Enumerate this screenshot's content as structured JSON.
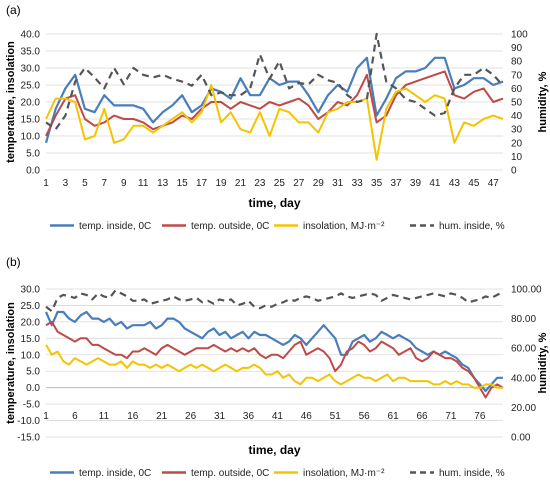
{
  "chart_data": [
    {
      "panel_label": "(a)",
      "type": "line",
      "xlabel": "time, day",
      "ylabel_left": "temperature, insolation",
      "ylabel_right": "humidity, %",
      "ylim_left": [
        0,
        40
      ],
      "ylim_right": [
        0,
        100
      ],
      "y_ticks_left": [
        "0.0",
        "5.0",
        "10.0",
        "15.0",
        "20.0",
        "25.0",
        "30.0",
        "35.0",
        "40.0"
      ],
      "y_ticks_right": [
        "0",
        "10",
        "20",
        "30",
        "40",
        "50",
        "60",
        "70",
        "80",
        "90",
        "100"
      ],
      "x": [
        1,
        2,
        3,
        4,
        5,
        6,
        7,
        8,
        9,
        10,
        11,
        12,
        13,
        14,
        15,
        16,
        17,
        18,
        19,
        20,
        21,
        22,
        23,
        24,
        25,
        26,
        27,
        28,
        29,
        30,
        31,
        32,
        33,
        34,
        35,
        36,
        37,
        38,
        39,
        40,
        41,
        42,
        43,
        44,
        45,
        46,
        47,
        48
      ],
      "x_tick_labels": [
        "1",
        "3",
        "5",
        "7",
        "9",
        "11",
        "13",
        "15",
        "17",
        "19",
        "21",
        "23",
        "25",
        "27",
        "29",
        "31",
        "33",
        "35",
        "37",
        "39",
        "41",
        "43",
        "45",
        "47"
      ],
      "legend": [
        "temp. inside, 0C",
        "temp. outside, 0C",
        "insolation, MJ·m⁻²",
        "hum. inside, %"
      ],
      "colors": {
        "temp_inside": "#4a7ebb",
        "temp_outside": "#be4b48",
        "insolation": "#f5c400",
        "humidity": "#555555"
      },
      "series": [
        {
          "name": "temp. inside, 0C",
          "axis": "left",
          "values": [
            8,
            18,
            24,
            28,
            18,
            17,
            22,
            19,
            19,
            19,
            18,
            14,
            17,
            19,
            22,
            17,
            19,
            24,
            23,
            21,
            27,
            22,
            22,
            27,
            25,
            26,
            26,
            22,
            17,
            22,
            25,
            23,
            30,
            33,
            16,
            21,
            27,
            29,
            29,
            30,
            33,
            33,
            24,
            25,
            27,
            27,
            25,
            26
          ]
        },
        {
          "name": "temp. outside, 0C",
          "axis": "left",
          "values": [
            10,
            16,
            21,
            22,
            15,
            13,
            14,
            16,
            15,
            15,
            14,
            12,
            13,
            14,
            16,
            15,
            18,
            20,
            20,
            18,
            20,
            19,
            18,
            20,
            19,
            20,
            21,
            19,
            15,
            17,
            20,
            19,
            22,
            28,
            14,
            16,
            22,
            25,
            26,
            27,
            28,
            29,
            22,
            21,
            23,
            24,
            20,
            21
          ]
        },
        {
          "name": "insolation, MJ·m⁻²",
          "axis": "left",
          "values": [
            15,
            21,
            21,
            20,
            9,
            10,
            18,
            8,
            9,
            13,
            13,
            11,
            13,
            15,
            17,
            14,
            17,
            25,
            14,
            17,
            12,
            11,
            17,
            10,
            18,
            17,
            14,
            14,
            11,
            17,
            18,
            20,
            20,
            21,
            3,
            18,
            23,
            24,
            22,
            20,
            22,
            21,
            8,
            14,
            13,
            15,
            16,
            15
          ]
        },
        {
          "name": "hum. inside, %",
          "axis": "right",
          "values": [
            35,
            30,
            40,
            65,
            75,
            68,
            60,
            75,
            63,
            75,
            70,
            68,
            70,
            67,
            65,
            62,
            70,
            55,
            57,
            55,
            55,
            60,
            85,
            67,
            80,
            60,
            64,
            63,
            70,
            66,
            64,
            55,
            50,
            52,
            100,
            65,
            60,
            52,
            50,
            45,
            40,
            42,
            60,
            70,
            70,
            75,
            70,
            62
          ]
        }
      ]
    },
    {
      "panel_label": "(b)",
      "type": "line",
      "xlabel": "time, day",
      "ylabel_left": "temperature, insolation",
      "ylabel_right": "humidity, %",
      "ylim_left": [
        -15,
        30
      ],
      "ylim_right": [
        0,
        100
      ],
      "y_ticks_left": [
        "-15.0",
        "-10.0",
        "-5.0",
        "0.0",
        "5.0",
        "10.0",
        "15.0",
        "20.0",
        "25.0",
        "30.0"
      ],
      "y_ticks_right": [
        "0.00",
        "20.00",
        "40.00",
        "60.00",
        "80.00",
        "100.00"
      ],
      "x": [
        1,
        2,
        3,
        4,
        5,
        6,
        7,
        8,
        9,
        10,
        11,
        12,
        13,
        14,
        15,
        16,
        17,
        18,
        19,
        20,
        21,
        22,
        23,
        24,
        25,
        26,
        27,
        28,
        29,
        30,
        31,
        32,
        33,
        34,
        35,
        36,
        37,
        38,
        39,
        40,
        41,
        42,
        43,
        44,
        45,
        46,
        47,
        48,
        49,
        50,
        51,
        52,
        53,
        54,
        55,
        56,
        57,
        58,
        59,
        60,
        61,
        62,
        63,
        64,
        65,
        66,
        67,
        68,
        69,
        70,
        71,
        72,
        73,
        74,
        75,
        76,
        77,
        78,
        79,
        80
      ],
      "x_tick_labels": [
        "1",
        "6",
        "11",
        "16",
        "21",
        "26",
        "31",
        "36",
        "41",
        "46",
        "51",
        "56",
        "61",
        "66",
        "71",
        "76"
      ],
      "legend": [
        "temp. inside, 0C",
        "temp. outside, 0C",
        "insolation, MJ·m⁻²",
        "hum. inside, %"
      ],
      "colors": {
        "temp_inside": "#4a7ebb",
        "temp_outside": "#be4b48",
        "insolation": "#f5c400",
        "humidity": "#555555"
      },
      "series": [
        {
          "name": "temp. inside, 0C",
          "axis": "left",
          "values": [
            23,
            19,
            23,
            23,
            21,
            20,
            22,
            23,
            21,
            21,
            20,
            21,
            19,
            20,
            18,
            19,
            19,
            19,
            20,
            18,
            19,
            21,
            21,
            20,
            18,
            17,
            16,
            15,
            17,
            18,
            16,
            17,
            15,
            16,
            17,
            15,
            17,
            16,
            16,
            15,
            14,
            13,
            14,
            16,
            15,
            13,
            15,
            17,
            19,
            17,
            15,
            10,
            10,
            14,
            15,
            16,
            14,
            15,
            17,
            16,
            15,
            16,
            15,
            14,
            12,
            11,
            10,
            11,
            10,
            11,
            10,
            9,
            7,
            6,
            3,
            1,
            -1,
            1,
            3,
            3
          ]
        },
        {
          "name": "temp. outside, 0C",
          "axis": "left",
          "values": [
            19,
            20,
            17,
            16,
            15,
            14,
            15,
            15,
            13,
            13,
            12,
            11,
            10,
            10,
            9,
            11,
            11,
            12,
            11,
            10,
            12,
            13,
            12,
            11,
            10,
            11,
            12,
            12,
            12,
            13,
            12,
            11,
            12,
            11,
            12,
            11,
            12,
            10,
            9,
            10,
            10,
            9,
            11,
            13,
            14,
            10,
            11,
            12,
            11,
            9,
            5,
            7,
            11,
            12,
            14,
            13,
            11,
            12,
            14,
            13,
            12,
            10,
            11,
            12,
            9,
            8,
            9,
            11,
            10,
            9,
            9,
            8,
            6,
            5,
            3,
            0,
            -3,
            0,
            1,
            0
          ]
        },
        {
          "name": "insolation, MJ·m⁻²",
          "axis": "left",
          "values": [
            13,
            10,
            11,
            8,
            7,
            9,
            8,
            7,
            8,
            9,
            8,
            7,
            7,
            8,
            6,
            8,
            7,
            7,
            6,
            7,
            6,
            7,
            6,
            5,
            6,
            7,
            6,
            7,
            6,
            5,
            6,
            7,
            6,
            5,
            6,
            6,
            7,
            6,
            4,
            4,
            5,
            3,
            4,
            2,
            1,
            3,
            3,
            2,
            3,
            4,
            2,
            1,
            2,
            3,
            4,
            3,
            3,
            2,
            3,
            4,
            2,
            3,
            3,
            2,
            2,
            2,
            2,
            1,
            1,
            2,
            1,
            2,
            1,
            1,
            0,
            0,
            1,
            1,
            0,
            0
          ]
        },
        {
          "name": "hum. inside, %",
          "axis": "right",
          "values": [
            88,
            85,
            94,
            96,
            95,
            94,
            97,
            96,
            93,
            97,
            95,
            94,
            99,
            97,
            95,
            92,
            92,
            93,
            90,
            91,
            92,
            93,
            95,
            93,
            92,
            93,
            94,
            91,
            92,
            90,
            93,
            92,
            93,
            89,
            90,
            92,
            88,
            87,
            89,
            88,
            90,
            91,
            93,
            92,
            94,
            95,
            94,
            92,
            93,
            94,
            95,
            97,
            95,
            94,
            95,
            96,
            97,
            96,
            92,
            94,
            96,
            95,
            94,
            93,
            94,
            95,
            96,
            97,
            96,
            95,
            97,
            96,
            94,
            91,
            92,
            93,
            95,
            94,
            96,
            98
          ]
        }
      ]
    }
  ]
}
